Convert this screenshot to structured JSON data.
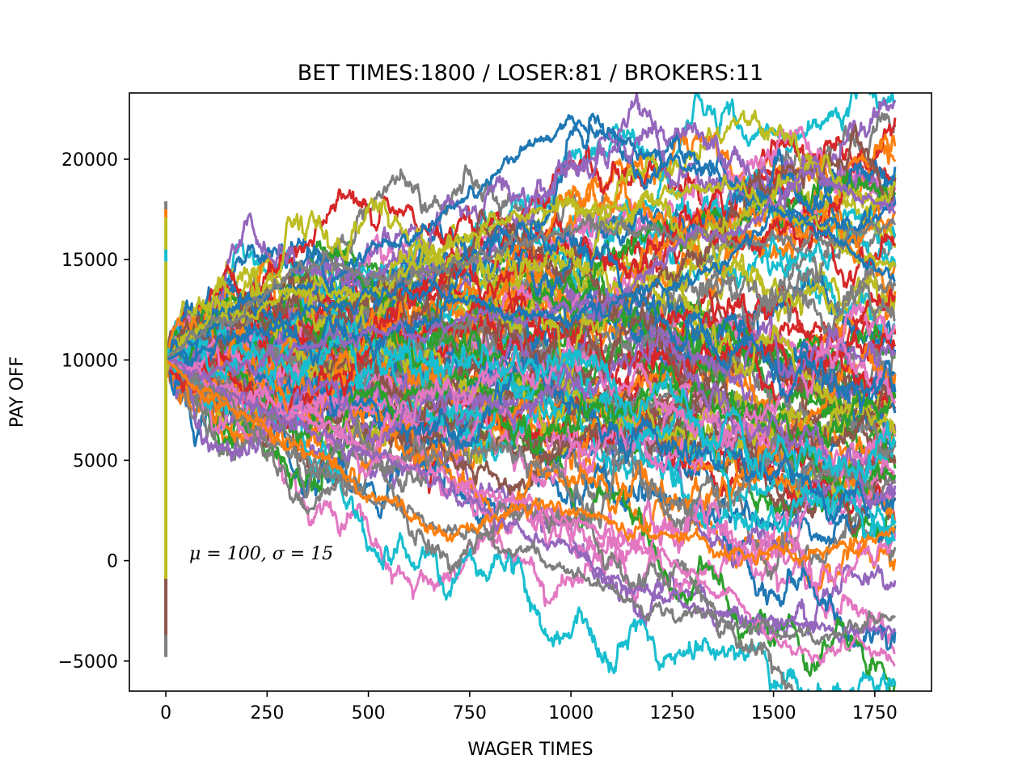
{
  "chart_data": {
    "type": "line",
    "title": "BET TIMES:1800 / LOSER:81 / BROKERS:11",
    "xlabel": "WAGER TIMES",
    "ylabel": "PAY OFF",
    "xlim": [
      -90,
      1890
    ],
    "ylim": [
      -6500,
      23300
    ],
    "xticks": [
      0,
      250,
      500,
      750,
      1000,
      1250,
      1500,
      1750
    ],
    "yticks": [
      -5000,
      0,
      5000,
      10000,
      15000,
      20000
    ],
    "ytick_labels": [
      "−5000",
      "0",
      "5000",
      "10000",
      "15000",
      "20000"
    ],
    "annotation": "μ = 100,  σ = 15",
    "annotation_pos": [
      60,
      250
    ],
    "initial_balance": 10000,
    "num_series": 100,
    "grid": false,
    "legend": "none",
    "palette": [
      "#1f77b4",
      "#ff7f0e",
      "#2ca02c",
      "#d62728",
      "#9467bd",
      "#8c564b",
      "#e377c2",
      "#7f7f7f",
      "#bcbd22",
      "#17becf"
    ],
    "start_bar": {
      "x": 0,
      "segments": [
        {
          "from": -4800,
          "to": -3700,
          "color": "#7f7f7f"
        },
        {
          "from": -3700,
          "to": -900,
          "color": "#8c564b"
        },
        {
          "from": -900,
          "to": 14900,
          "color": "#bcbd22"
        },
        {
          "from": 14900,
          "to": 15500,
          "color": "#17becf"
        },
        {
          "from": 15500,
          "to": 17100,
          "color": "#bcbd22"
        },
        {
          "from": 17100,
          "to": 17500,
          "color": "#ff7f0e"
        },
        {
          "from": 17500,
          "to": 17900,
          "color": "#7f7f7f"
        }
      ]
    },
    "x": [
      0,
      100,
      200,
      300,
      400,
      500,
      600,
      700,
      800,
      900,
      1000,
      1100,
      1200,
      1300,
      1400,
      1500,
      1600,
      1700,
      1800
    ],
    "highlighted_series": [
      {
        "color": "#1f77b4",
        "y": [
          10000,
          11600,
          13200,
          13600,
          13800,
          15200,
          16200,
          17400,
          19000,
          20500,
          21800,
          21200,
          20000,
          19600,
          18500,
          17500,
          16800,
          16800,
          17600
        ]
      },
      {
        "color": "#bcbd22",
        "y": [
          10000,
          11800,
          12400,
          13500,
          13600,
          13200,
          14500,
          15800,
          16600,
          17200,
          17800,
          17500,
          17800,
          18400,
          18300,
          17600,
          16800,
          15000,
          14600
        ]
      },
      {
        "color": "#7f7f7f",
        "y": [
          10000,
          11700,
          12500,
          14000,
          14900,
          14200,
          14000,
          14600,
          15200,
          16200,
          16500,
          16800,
          16300,
          16100,
          15800,
          15700,
          15900,
          16300,
          16900
        ]
      },
      {
        "color": "#9467bd",
        "y": [
          10000,
          9600,
          9800,
          10300,
          10900,
          11500,
          11200,
          11800,
          12400,
          12100,
          12400,
          13000,
          14500,
          16500,
          16000,
          18000,
          19200,
          18300,
          17700
        ]
      },
      {
        "color": "#1f77b4",
        "y": [
          10000,
          10800,
          11300,
          12100,
          12600,
          12900,
          13500,
          12900,
          12600,
          12300,
          12100,
          12800,
          13700,
          14000,
          15100,
          17400,
          16800,
          15200,
          13800
        ]
      },
      {
        "color": "#e377c2",
        "y": [
          10000,
          9200,
          8200,
          7300,
          6800,
          5600,
          4800,
          4200,
          3300,
          2700,
          2100,
          1100,
          400,
          -500,
          -1900,
          -3900,
          -4800,
          -4300,
          -4800
        ]
      },
      {
        "color": "#9467bd",
        "y": [
          10000,
          8900,
          7700,
          7000,
          6200,
          5200,
          4600,
          3500,
          2200,
          1200,
          300,
          -800,
          -1600,
          -2200,
          -2700,
          -3200,
          -3000,
          -3600,
          -3600
        ]
      },
      {
        "color": "#7f7f7f",
        "y": [
          10000,
          8600,
          6800,
          5600,
          4300,
          3400,
          2500,
          1400,
          1100,
          400,
          -600,
          -1500,
          -2500,
          -2800,
          -3300,
          -3600,
          -3900,
          -3400,
          -2900
        ]
      },
      {
        "color": "#ff7f0e",
        "y": [
          10000,
          8300,
          7000,
          6000,
          5000,
          3300,
          2200,
          1400,
          2100,
          2800,
          2400,
          1800,
          1200,
          900,
          600,
          200,
          500,
          800,
          1400
        ]
      }
    ]
  }
}
